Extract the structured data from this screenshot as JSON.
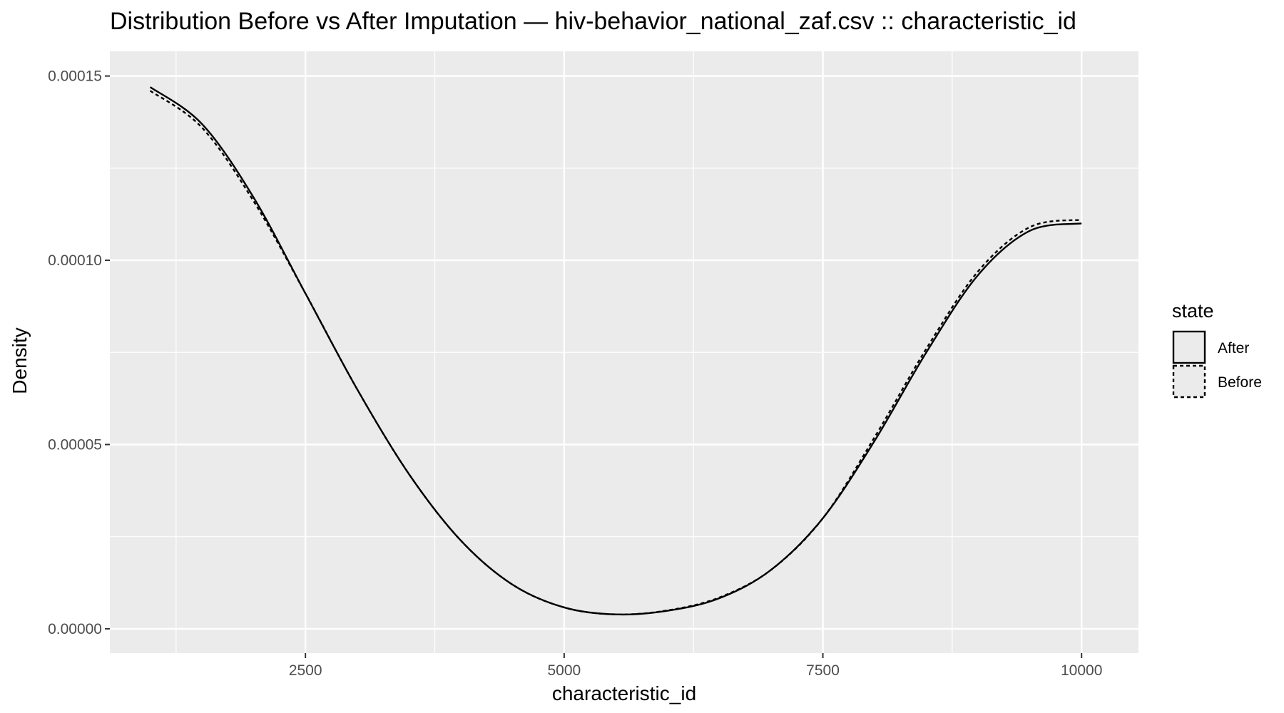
{
  "chart_data": {
    "type": "line",
    "title": "Distribution Before vs After Imputation — hiv-behavior_national_zaf.csv :: characteristic_id",
    "xlabel": "characteristic_id",
    "ylabel": "Density",
    "xlim": [
      610,
      10550
    ],
    "ylim": [
      -6.6e-06,
      0.0001567
    ],
    "x_ticks": [
      2500,
      5000,
      7500,
      10000
    ],
    "x_tick_labels": [
      "2500",
      "5000",
      "7500",
      "10000"
    ],
    "y_ticks": [
      0,
      5e-05,
      0.0001,
      0.00015
    ],
    "y_tick_labels": [
      "0.00000",
      "0.00005",
      "0.00010",
      "0.00015"
    ],
    "grid": true,
    "panel_background": "#ebebeb",
    "grid_color": "#ffffff",
    "legend": {
      "title": "state",
      "position": "right",
      "entries": [
        "After",
        "Before"
      ]
    },
    "series": [
      {
        "name": "After",
        "linetype": "solid",
        "color": "#000000",
        "x": [
          1000,
          1500,
          2000,
          2500,
          3000,
          3500,
          4000,
          4500,
          5000,
          5500,
          6000,
          6500,
          7000,
          7500,
          8000,
          8500,
          9000,
          9500,
          10000
        ],
        "y": [
          0.000147,
          0.000137,
          0.000117,
          9.1e-05,
          6.5e-05,
          4.2e-05,
          2.4e-05,
          1.2e-05,
          5.8e-06,
          3.9e-06,
          4.9e-06,
          8.3e-06,
          1.6e-05,
          3e-05,
          5.1e-05,
          7.5e-05,
          9.6e-05,
          0.000108,
          0.00011
        ]
      },
      {
        "name": "Before",
        "linetype": "dashed",
        "color": "#000000",
        "x": [
          1000,
          1500,
          2000,
          2500,
          3000,
          3500,
          4000,
          4500,
          5000,
          5500,
          6000,
          6500,
          7000,
          7500,
          8000,
          8500,
          9000,
          9500,
          10000
        ],
        "y": [
          0.000146,
          0.000136,
          0.000116,
          9.1e-05,
          6.5e-05,
          4.2e-05,
          2.4e-05,
          1.2e-05,
          5.8e-06,
          3.9e-06,
          5e-06,
          8.5e-06,
          1.6e-05,
          3e-05,
          5.2e-05,
          7.6e-05,
          9.7e-05,
          0.000109,
          0.000111
        ]
      }
    ]
  }
}
